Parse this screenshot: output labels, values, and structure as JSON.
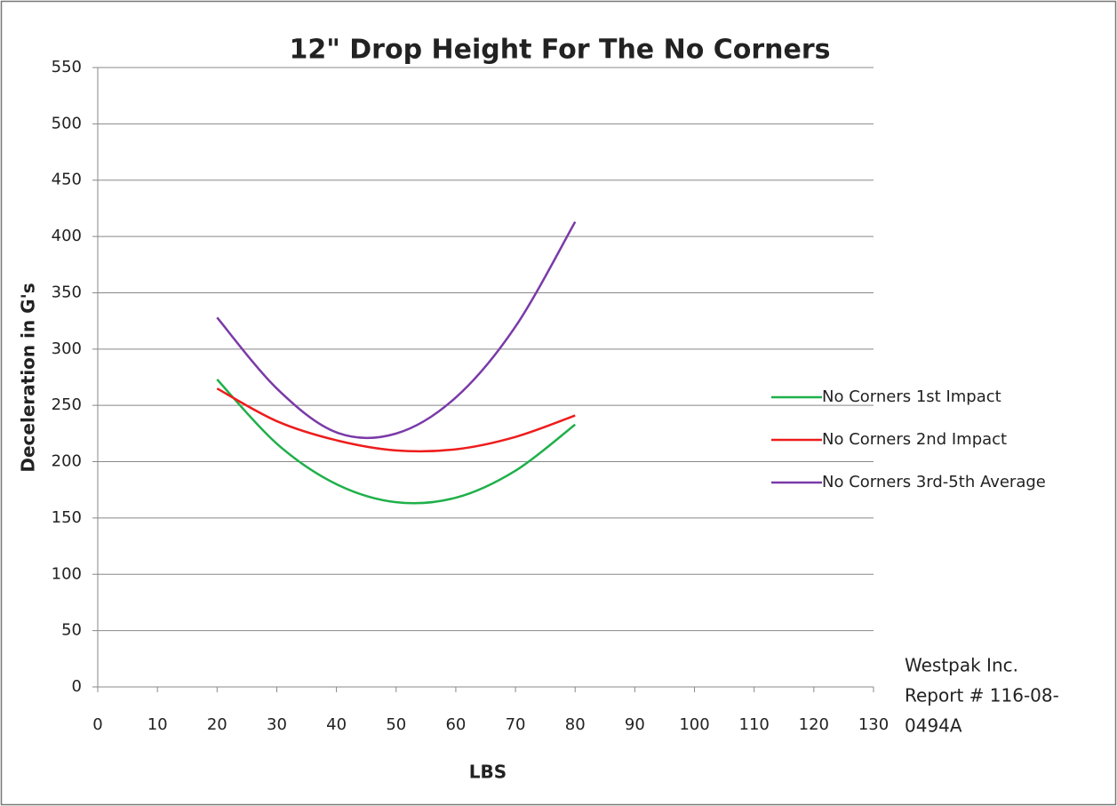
{
  "chart_data": {
    "type": "line",
    "title": "12\" Drop Height For The No Corners",
    "x_label": "LBS",
    "y_label": "Deceleration in G's",
    "x": [
      20,
      30,
      40,
      50,
      60,
      70,
      80
    ],
    "series": [
      {
        "name": "No Corners 1st Impact",
        "color": "#1fb04a",
        "values": [
          273,
          216,
          180,
          164,
          168,
          192,
          233
        ]
      },
      {
        "name": "No Corners 2nd Impact",
        "color": "#ee1c1c",
        "values": [
          265,
          236,
          219,
          210,
          211,
          222,
          241
        ]
      },
      {
        "name": "No Corners 3rd-5th Average",
        "color": "#7a3aa8",
        "values": [
          328,
          265,
          226,
          225,
          257,
          320,
          413
        ]
      }
    ],
    "xlim": [
      0,
      130
    ],
    "xticks": [
      0,
      10,
      20,
      30,
      40,
      50,
      60,
      70,
      80,
      90,
      100,
      110,
      120,
      130
    ],
    "ylim": [
      0,
      550
    ],
    "yticks": [
      0,
      50,
      100,
      150,
      200,
      250,
      300,
      350,
      400,
      450,
      500,
      550
    ],
    "grid": true,
    "legend": "right",
    "annotation": [
      "Westpak Inc.",
      "Report # 116-08-",
      "0494A"
    ]
  }
}
